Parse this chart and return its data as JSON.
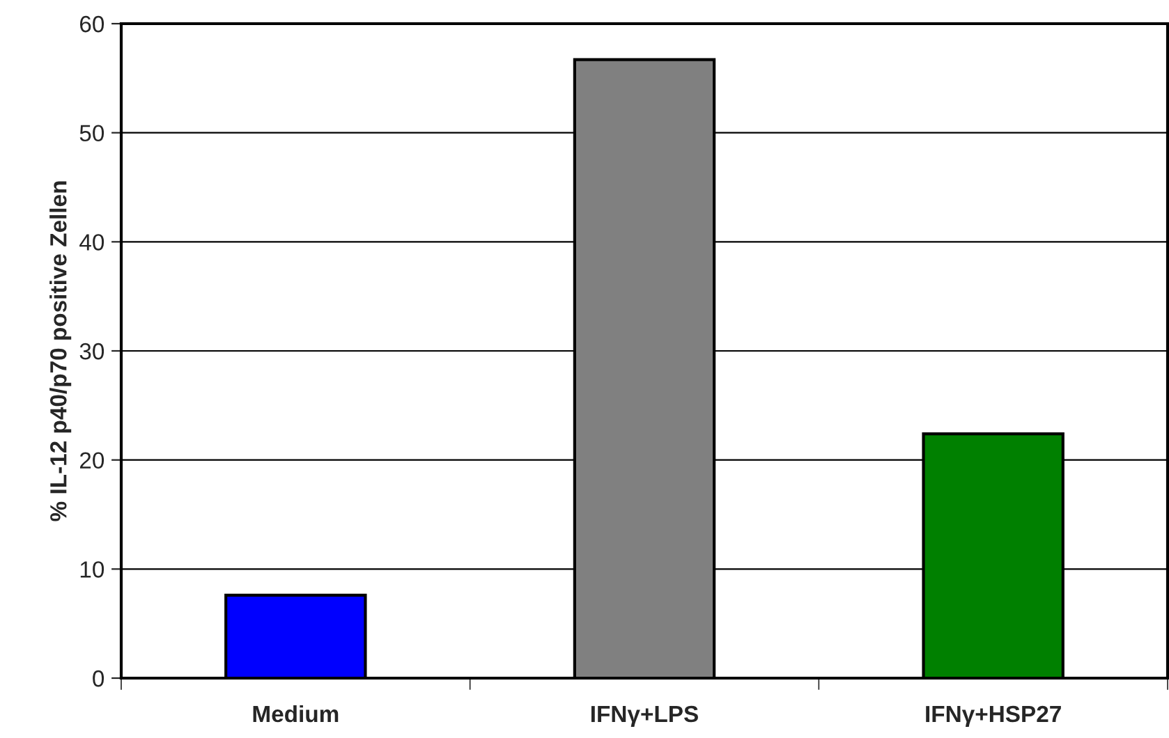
{
  "chart_data": {
    "type": "bar",
    "ylabel": "% IL-12 p40/p70 positive Zellen",
    "categories": [
      "Medium",
      "IFNγ+LPS",
      "IFNγ+HSP27"
    ],
    "values": [
      7.6,
      56.7,
      22.4
    ],
    "colors": [
      "#0000ff",
      "#808080",
      "#008000"
    ],
    "ylim": [
      0,
      60
    ],
    "yticks": [
      0,
      10,
      20,
      30,
      40,
      50,
      60
    ],
    "grid": "y",
    "legend": false
  }
}
